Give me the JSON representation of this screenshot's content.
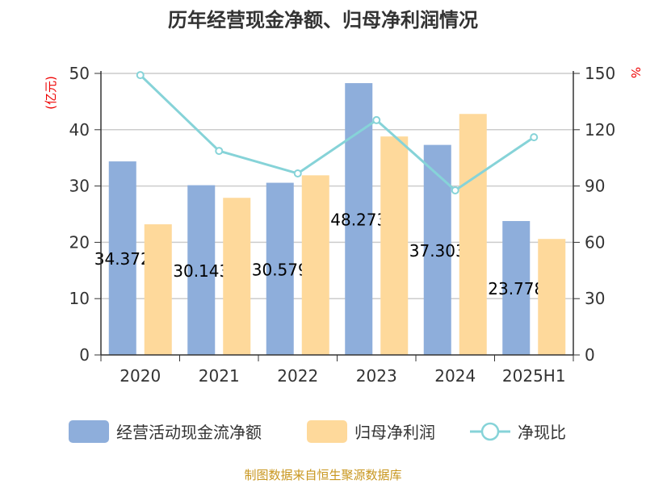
{
  "chart_data": {
    "type": "bar+line",
    "title": "历年经营现金净额、归母净利润情况",
    "categories": [
      "2020",
      "2021",
      "2022",
      "2023",
      "2024",
      "2025H1"
    ],
    "series": [
      {
        "name": "经营活动现金流净额",
        "type": "bar",
        "axis": "left",
        "color": "#8eaedb",
        "values": [
          34.372,
          30.143,
          30.579,
          48.273,
          37.303,
          23.778
        ],
        "labels": [
          "34.372",
          "30.143",
          "30.579",
          "48.273",
          "37.303",
          "23.778"
        ]
      },
      {
        "name": "归母净利润",
        "type": "bar",
        "axis": "left",
        "color": "#fed99b",
        "values": [
          23.2,
          27.9,
          31.9,
          38.8,
          42.8,
          20.6
        ]
      },
      {
        "name": "净现比",
        "type": "line",
        "axis": "right",
        "color": "#86d3d8",
        "values": [
          149.1,
          108.7,
          96.7,
          125.1,
          87.7,
          116.0
        ]
      }
    ],
    "ylabel_left": "(亿元)",
    "ylabel_right": "%",
    "ylim_left": [
      0,
      50
    ],
    "ylim_right": [
      0,
      150
    ],
    "yticks_left": [
      "0",
      "10",
      "20",
      "30",
      "40",
      "50"
    ],
    "yticks_right": [
      "0",
      "30",
      "60",
      "90",
      "120",
      "150"
    ],
    "grid": true,
    "legend_placement": "bottom",
    "source": "制图数据来自恒生聚源数据库"
  }
}
